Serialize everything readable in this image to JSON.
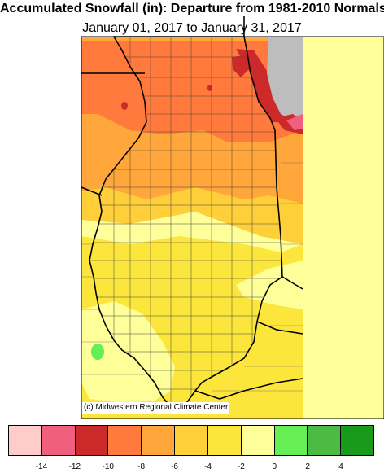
{
  "title": "Accumulated Snowfall (in): Departure from 1981-2010 Normals",
  "subtitle": "January 01, 2017 to January 31, 2017",
  "credit": "(c) Midwestern Regional Climate Center",
  "legend": {
    "colors": [
      "#ffcccc",
      "#f0607e",
      "#cc2a2a",
      "#ff7a3c",
      "#ffa73a",
      "#ffcf3a",
      "#fde63c",
      "#ffff99",
      "#66ee55",
      "#4cbb44",
      "#1a9a1a"
    ],
    "tick_labels": [
      "-14",
      "-12",
      "-10",
      "-8",
      "-6",
      "-4",
      "-2",
      "0",
      "2",
      "4"
    ]
  },
  "water_color": "#bdbdbd"
}
